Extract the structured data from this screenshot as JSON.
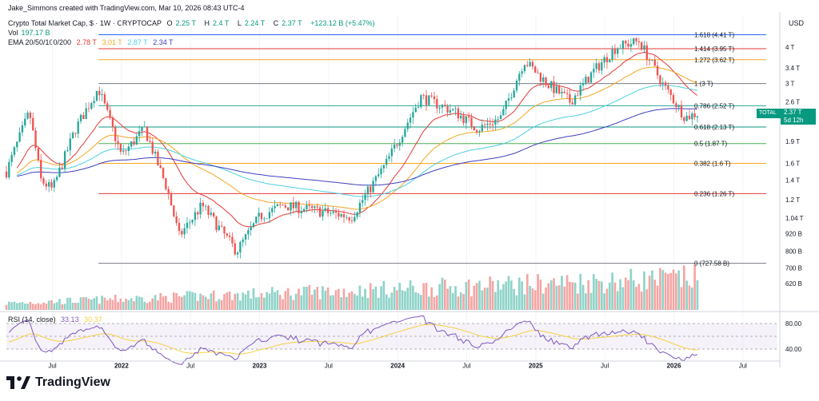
{
  "attribution": "Jake_Simmons created with TradingView.com, Mar 10, 2026 08:43 UTC-4",
  "header": {
    "symbol": "Crypto Total Market Cap, $ · 1W · CRYPTOCAP",
    "ohlc": [
      {
        "key": "O",
        "value": "2.25 T"
      },
      {
        "key": "H",
        "value": "2.4 T"
      },
      {
        "key": "L",
        "value": "2.24 T"
      },
      {
        "key": "C",
        "value": "2.37 T"
      }
    ],
    "change": "+123.12 B (+5.47%)",
    "vol_label": "Vol",
    "vol_value": "197.17 B",
    "ema_label": "EMA 20/50/100/200",
    "ema_values": [
      {
        "value": "2.78 T",
        "color": "#e53935"
      },
      {
        "value": "3.01 T",
        "color": "#f5a623"
      },
      {
        "value": "2.87 T",
        "color": "#4dd0e1"
      },
      {
        "value": "2.34 T",
        "color": "#3f3fbf"
      }
    ]
  },
  "currency": "USD",
  "price_axis": [
    "4 T",
    "3.4 T",
    "3 T",
    "2.6 T",
    "1.9 T",
    "1.6 T",
    "1.4 T",
    "1.2 T",
    "1.04 T",
    "920 B",
    "800 B",
    "700 B",
    "620 B"
  ],
  "rsi": {
    "label": "RSI (14, close)",
    "value1": "33.13",
    "value2": "30.37",
    "axis": [
      "80.00",
      "40.00"
    ]
  },
  "time_axis": [
    "Jul",
    "2022",
    "Jul",
    "2023",
    "Jul",
    "2024",
    "Jul",
    "2025",
    "Jul",
    "2026",
    "Jul"
  ],
  "total_tag": {
    "label": "TOTAL",
    "price": "2.37 T",
    "countdown": "5d 12h"
  },
  "fib_levels": [
    {
      "label": "1.618 (4.41 T)",
      "value": 4.41,
      "color": "#2962ff"
    },
    {
      "label": "1.414 (3.95 T)",
      "value": 3.95,
      "color": "#e53935"
    },
    {
      "label": "1.272 (3.62 T)",
      "value": 3.62,
      "color": "#f5a623"
    },
    {
      "label": "1 (3 T)",
      "value": 3.0,
      "color": "#787b86"
    },
    {
      "label": "0.786 (2.52 T)",
      "value": 2.52,
      "color": "#26a69a"
    },
    {
      "label": "0.618 (2.13 T)",
      "value": 2.13,
      "color": "#089981"
    },
    {
      "label": "0.5 (1.87 T)",
      "value": 1.87,
      "color": "#4caf50"
    },
    {
      "label": "0.382 (1.6 T)",
      "value": 1.6,
      "color": "#f5a623"
    },
    {
      "label": "0.236 (1.26 T)",
      "value": 1.26,
      "color": "#e53935"
    },
    {
      "label": "0 (727.58 B)",
      "value": 0.72758,
      "color": "#787b86"
    }
  ],
  "brand": "TradingView",
  "chart_data": {
    "type": "candlestick",
    "y_scale": "log",
    "unit": "T USD",
    "ylim": [
      0.62,
      4.8
    ],
    "xlim": [
      "2021-03",
      "2026-10"
    ],
    "price_path": [
      {
        "t": "2021-03",
        "v": 1.5
      },
      {
        "t": "2021-05",
        "v": 2.4
      },
      {
        "t": "2021-06",
        "v": 1.4
      },
      {
        "t": "2021-07",
        "v": 1.3
      },
      {
        "t": "2021-09",
        "v": 2.1
      },
      {
        "t": "2021-11",
        "v": 2.9
      },
      {
        "t": "2022-01",
        "v": 1.7
      },
      {
        "t": "2022-03",
        "v": 2.1
      },
      {
        "t": "2022-05",
        "v": 1.3
      },
      {
        "t": "2022-06",
        "v": 0.9
      },
      {
        "t": "2022-08",
        "v": 1.15
      },
      {
        "t": "2022-11",
        "v": 0.8
      },
      {
        "t": "2023-01",
        "v": 1.05
      },
      {
        "t": "2023-03",
        "v": 1.15
      },
      {
        "t": "2023-06",
        "v": 1.1
      },
      {
        "t": "2023-09",
        "v": 1.05
      },
      {
        "t": "2023-12",
        "v": 1.6
      },
      {
        "t": "2024-03",
        "v": 2.7
      },
      {
        "t": "2024-06",
        "v": 2.4
      },
      {
        "t": "2024-08",
        "v": 2.1
      },
      {
        "t": "2024-10",
        "v": 2.3
      },
      {
        "t": "2024-12",
        "v": 3.6
      },
      {
        "t": "2025-02",
        "v": 3.0
      },
      {
        "t": "2025-04",
        "v": 2.6
      },
      {
        "t": "2025-06",
        "v": 3.3
      },
      {
        "t": "2025-08",
        "v": 4.0
      },
      {
        "t": "2025-10",
        "v": 4.2
      },
      {
        "t": "2025-12",
        "v": 3.0
      },
      {
        "t": "2026-02",
        "v": 2.3
      },
      {
        "t": "2026-03",
        "v": 2.37
      }
    ],
    "ema_series": [
      {
        "name": "EMA 20",
        "color": "#e53935",
        "last": 2.78
      },
      {
        "name": "EMA 50",
        "color": "#f5a623",
        "last": 3.01
      },
      {
        "name": "EMA 100",
        "color": "#4dd0e1",
        "last": 2.87
      },
      {
        "name": "EMA 200",
        "color": "#3f3fbf",
        "last": 2.34
      }
    ],
    "volume_last_b": 197.17,
    "rsi_last": 33.13,
    "rsi_ma_last": 30.37
  }
}
